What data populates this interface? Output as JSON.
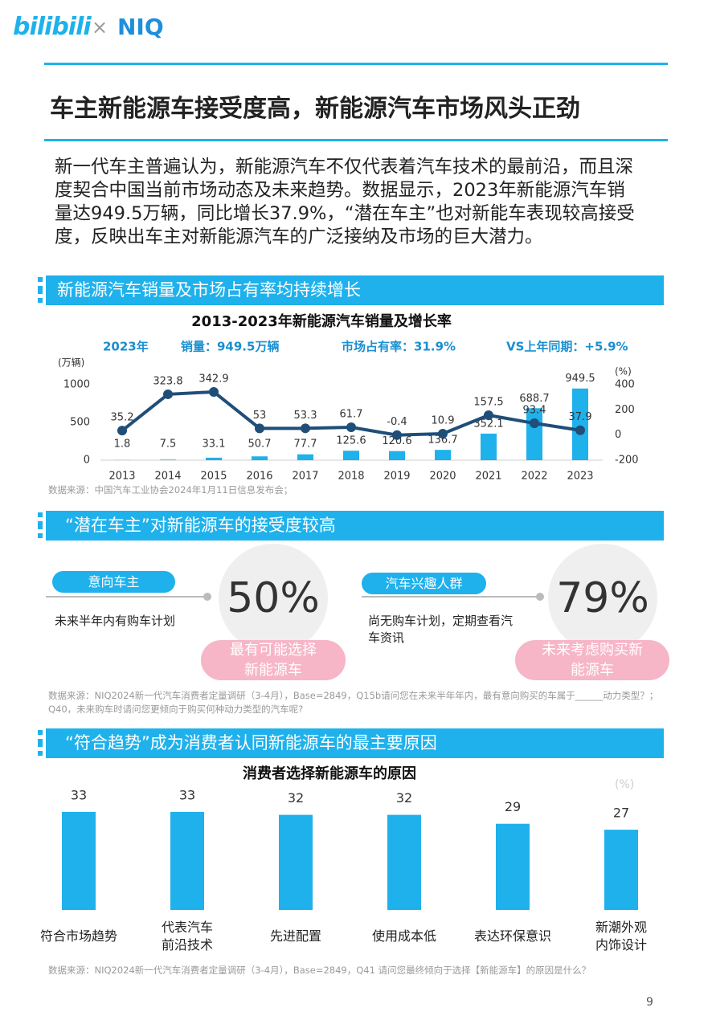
{
  "header": {
    "logo_left": "bilibili",
    "logo_sep": "×",
    "logo_right": "NIQ"
  },
  "title": "车主新能源车接受度高，新能源汽车市场风头正劲",
  "intro": "新一代车主普遍认为，新能源汽车不仅代表着汽车技术的最前沿，而且深度契合中国当前市场动态及未来趋势。数据显示，2023年新能源汽车销量达949.5万辆，同比增长37.9%，“潜在车主”也对新能车表现较高接受度，反映出车主对新能源汽车的广泛接纳及市场的巨大潜力。",
  "sections": [
    {
      "heading": "新能源汽车销量及市场占有率均持续增长",
      "source": "数据来源：中国汽车工业协会2024年1月11日信息发布会；"
    },
    {
      "heading": "“潜在车主”对新能源车的接受度较高",
      "source": "数据来源：NIQ2024新一代汽车消费者定量调研（3-4月），Base=2849，Q15b请问您在未来半年年内，最有意向购买的车属于______动力类型？；Q40，未来购车时请问您更倾向于购买何种动力类型的汽车呢?",
      "cards": [
        {
          "tag": "意向车主",
          "desc": "未来半年内有购车计划",
          "stat": "50%",
          "note": "最有可能选择新能源车"
        },
        {
          "tag": "汽车兴趣人群",
          "desc": "尚无购车计划，定期查看汽车资讯",
          "stat": "79%",
          "note": "未来考虑购买新能源车"
        }
      ]
    },
    {
      "heading": "“符合趋势”成为消费者认同新能源车的最主要原因",
      "source": "数据来源：NIQ2024新一代汽车消费者定量调研（3-4月），Base=2849，Q41 请问您最终倾向于选择【新能源车】的原因是什么？"
    }
  ],
  "page_number": "9",
  "chart_data": [
    {
      "type": "bar",
      "title": "2013-2023年新能源汽车销量及增长率",
      "highlights": [
        "2023年",
        "销量：949.5万辆",
        "市场占有率：31.9%",
        "VS上年同期：+5.9%"
      ],
      "y_label": "(万辆)",
      "y2_label": "(%)",
      "categories": [
        "2013",
        "2014",
        "2015",
        "2016",
        "2017",
        "2018",
        "2019",
        "2020",
        "2021",
        "2022",
        "2023"
      ],
      "series": [
        {
          "type": "bar",
          "color": "#1fb1ec",
          "values": [
            1.8,
            7.5,
            33.1,
            50.7,
            77.7,
            125.6,
            120.6,
            136.7,
            352.1,
            688.7,
            949.5
          ]
        },
        {
          "type": "line",
          "axis": "y2",
          "color": "#1f4e79",
          "values": [
            35.2,
            323.8,
            342.9,
            53,
            53.3,
            61.7,
            -0.4,
            10.9,
            157.5,
            93.4,
            37.9
          ]
        }
      ],
      "ylim": [
        0,
        1000
      ],
      "yticks": [
        0,
        500,
        1000
      ],
      "y2lim": [
        -200,
        400
      ],
      "y2ticks": [
        -200,
        0,
        200,
        400
      ]
    },
    {
      "type": "bar",
      "title": "消费者选择新能源车的原因",
      "unit": "(%)",
      "color": "#1fb1ec",
      "categories": [
        "符合市场趋势",
        "代表汽车\n前沿技术",
        "先进配置",
        "使用成本低",
        "表达环保意识",
        "新潮外观\n内饰设计"
      ],
      "values": [
        33,
        33,
        32,
        32,
        29,
        27
      ]
    }
  ]
}
